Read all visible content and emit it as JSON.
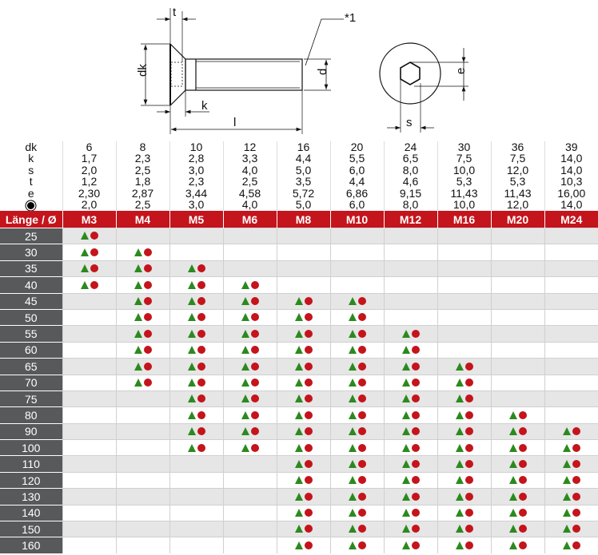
{
  "drawing": {
    "labels": {
      "t": "t",
      "dk": "dk",
      "k": "k",
      "l": "l",
      "d": "d",
      "note": "*1",
      "e": "e",
      "s": "s"
    }
  },
  "dimensions": {
    "columns": [
      "6",
      "8",
      "10",
      "12",
      "16",
      "20",
      "24",
      "30",
      "36",
      "39"
    ],
    "rows": [
      {
        "label": "dk",
        "values": [
          "6",
          "8",
          "10",
          "12",
          "16",
          "20",
          "24",
          "30",
          "36",
          "39"
        ]
      },
      {
        "label": "k",
        "values": [
          "1,7",
          "2,3",
          "2,8",
          "3,3",
          "4,4",
          "5,5",
          "6,5",
          "7,5",
          "7,5",
          "14,0"
        ]
      },
      {
        "label": "s",
        "values": [
          "2,0",
          "2,5",
          "3,0",
          "4,0",
          "5,0",
          "6,0",
          "8,0",
          "10,0",
          "12,0",
          "14,0"
        ]
      },
      {
        "label": "t",
        "values": [
          "1,2",
          "1,8",
          "2,3",
          "2,5",
          "3,5",
          "4,4",
          "4,6",
          "5,3",
          "5,3",
          "10,3"
        ]
      },
      {
        "label": "e",
        "values": [
          "2,30",
          "2,87",
          "3,44",
          "4,58",
          "5,72",
          "6,86",
          "9,15",
          "11,43",
          "11,43",
          "16,00"
        ]
      },
      {
        "label": "",
        "icon": "drive-size-icon",
        "values": [
          "2,0",
          "2,5",
          "3,0",
          "4,0",
          "5,0",
          "6,0",
          "8,0",
          "10,0",
          "12,0",
          "14,0"
        ]
      }
    ]
  },
  "availability": {
    "header_label": "Länge / Ø",
    "sizes": [
      "M3",
      "M4",
      "M5",
      "M6",
      "M8",
      "M10",
      "M12",
      "M16",
      "M20",
      "M24"
    ],
    "colors": {
      "header": "#c4141c",
      "triangle": "#2b8a1e",
      "dot": "#c4141c",
      "label_bg": "#58595b"
    },
    "rows": [
      {
        "length": "25",
        "available": [
          "M3"
        ]
      },
      {
        "length": "30",
        "available": [
          "M3",
          "M4"
        ]
      },
      {
        "length": "35",
        "available": [
          "M3",
          "M4",
          "M5"
        ]
      },
      {
        "length": "40",
        "available": [
          "M3",
          "M4",
          "M5",
          "M6"
        ]
      },
      {
        "length": "45",
        "available": [
          "M4",
          "M5",
          "M6",
          "M8",
          "M10"
        ]
      },
      {
        "length": "50",
        "available": [
          "M4",
          "M5",
          "M6",
          "M8",
          "M10"
        ]
      },
      {
        "length": "55",
        "available": [
          "M4",
          "M5",
          "M6",
          "M8",
          "M10",
          "M12"
        ]
      },
      {
        "length": "60",
        "available": [
          "M4",
          "M5",
          "M6",
          "M8",
          "M10",
          "M12"
        ]
      },
      {
        "length": "65",
        "available": [
          "M4",
          "M5",
          "M6",
          "M8",
          "M10",
          "M12",
          "M16"
        ]
      },
      {
        "length": "70",
        "available": [
          "M4",
          "M5",
          "M6",
          "M8",
          "M10",
          "M12",
          "M16"
        ]
      },
      {
        "length": "75",
        "available": [
          "M5",
          "M6",
          "M8",
          "M10",
          "M12",
          "M16"
        ]
      },
      {
        "length": "80",
        "available": [
          "M5",
          "M6",
          "M8",
          "M10",
          "M12",
          "M16",
          "M20"
        ]
      },
      {
        "length": "90",
        "available": [
          "M5",
          "M6",
          "M8",
          "M10",
          "M12",
          "M16",
          "M20",
          "M24"
        ]
      },
      {
        "length": "100",
        "available": [
          "M5",
          "M6",
          "M8",
          "M10",
          "M12",
          "M16",
          "M20",
          "M24"
        ]
      },
      {
        "length": "110",
        "available": [
          "M8",
          "M10",
          "M12",
          "M16",
          "M20",
          "M24"
        ]
      },
      {
        "length": "120",
        "available": [
          "M8",
          "M10",
          "M12",
          "M16",
          "M20",
          "M24"
        ]
      },
      {
        "length": "130",
        "available": [
          "M8",
          "M10",
          "M12",
          "M16",
          "M20",
          "M24"
        ]
      },
      {
        "length": "140",
        "available": [
          "M8",
          "M10",
          "M12",
          "M16",
          "M20",
          "M24"
        ]
      },
      {
        "length": "150",
        "available": [
          "M8",
          "M10",
          "M12",
          "M16",
          "M20",
          "M24"
        ]
      },
      {
        "length": "160",
        "available": [
          "M8",
          "M10",
          "M12",
          "M16",
          "M20",
          "M24"
        ]
      }
    ]
  }
}
